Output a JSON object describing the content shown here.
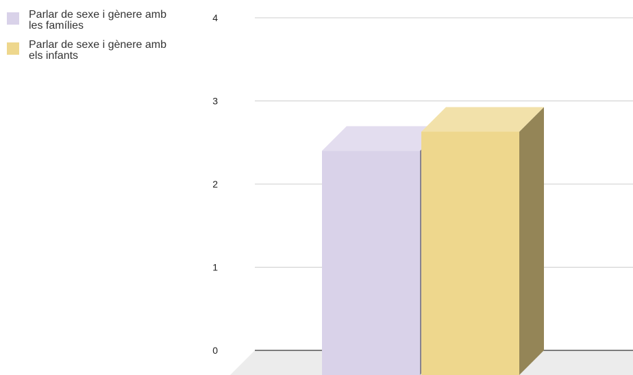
{
  "chart_data": {
    "type": "bar",
    "style": "3d",
    "categories": [
      ""
    ],
    "series": [
      {
        "name": "Parlar de sexe i gènere amb les famílies",
        "values": [
          2.4
        ],
        "color": "#d9d2e9"
      },
      {
        "name": "Parlar de sexe i gènere amb els infants",
        "values": [
          2.63
        ],
        "color": "#eed78d"
      }
    ],
    "ylim": [
      0,
      4
    ],
    "y_ticks": [
      "0",
      "1",
      "2",
      "3",
      "4"
    ],
    "grid": true,
    "legend_position": "top-left",
    "title": "",
    "xlabel": "",
    "ylabel": ""
  }
}
